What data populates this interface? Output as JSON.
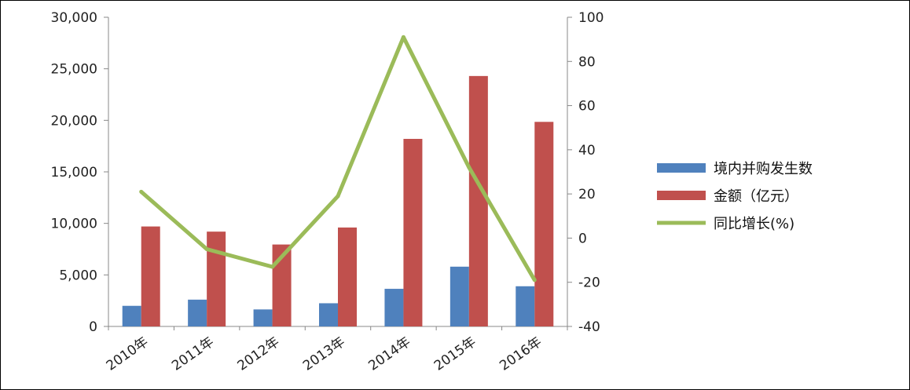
{
  "chart_data": {
    "type": "bar",
    "categories": [
      "2010年",
      "2011年",
      "2012年",
      "2013年",
      "2014年",
      "2015年",
      "2016年"
    ],
    "series": [
      {
        "name": "境内并购发生数",
        "type": "bar",
        "axis": "left",
        "color": "#4f81bd",
        "values": [
          2000,
          2600,
          1650,
          2250,
          3650,
          5800,
          3900
        ]
      },
      {
        "name": "金额（亿元）",
        "type": "bar",
        "axis": "left",
        "color": "#c0504d",
        "values": [
          9700,
          9200,
          7950,
          9600,
          18200,
          24300,
          19850
        ]
      },
      {
        "name": "同比增长(%)",
        "type": "line",
        "axis": "right",
        "color": "#9bbb59",
        "values": [
          21,
          -5,
          -13,
          19,
          91,
          32,
          -19
        ]
      }
    ],
    "y_left": {
      "min": 0,
      "max": 30000,
      "step": 5000,
      "tick_labels": [
        "0",
        "5,000",
        "10,000",
        "15,000",
        "20,000",
        "25,000",
        "30,000"
      ]
    },
    "y_right": {
      "min": -40,
      "max": 100,
      "step": 20,
      "tick_labels": [
        "-40",
        "-20",
        "0",
        "20",
        "40",
        "60",
        "80",
        "100"
      ]
    },
    "legend_position": "right",
    "grid": false
  }
}
